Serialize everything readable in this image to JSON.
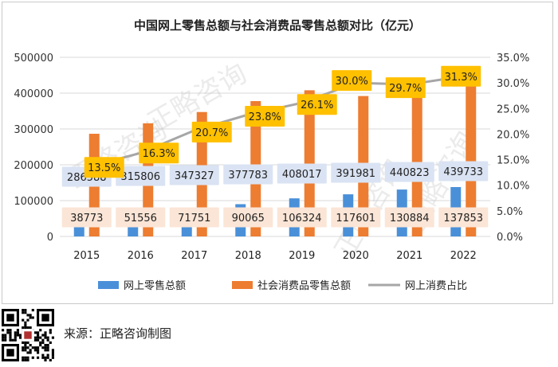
{
  "chart_data": {
    "type": "bar",
    "title": "中国网上零售总额与社会消费品零售总额对比（亿元）",
    "categories": [
      "2015",
      "2016",
      "2017",
      "2018",
      "2019",
      "2020",
      "2021",
      "2022"
    ],
    "y_left_ticks": [
      "0",
      "100000",
      "200000",
      "300000",
      "400000",
      "500000"
    ],
    "y_right_ticks": [
      "0.0%",
      "5.0%",
      "10.0%",
      "15.0%",
      "20.0%",
      "25.0%",
      "30.0%",
      "35.0%"
    ],
    "ylim_left": [
      0,
      500000
    ],
    "ylim_right": [
      0,
      35
    ],
    "grid": true,
    "legend_position": "bottom",
    "series": [
      {
        "name": "网上零售总额",
        "kind": "bar",
        "axis": "left",
        "color": "#4a90d9",
        "values": [
          38773,
          51556,
          71751,
          90065,
          106324,
          117601,
          130884,
          137853
        ],
        "labels": [
          "38773",
          "51556",
          "71751",
          "90065",
          "106324",
          "117601",
          "130884",
          "137853"
        ]
      },
      {
        "name": "社会消费品零售总额",
        "kind": "bar",
        "axis": "left",
        "color": "#ed7d31",
        "values": [
          286588,
          315806,
          347327,
          377783,
          408017,
          391981,
          440823,
          439733
        ],
        "labels": [
          "286588",
          "315806",
          "347327",
          "377783",
          "408017",
          "391981",
          "440823",
          "439733"
        ]
      },
      {
        "name": "网上消费占比",
        "kind": "line",
        "axis": "right",
        "color": "#a6a6a6",
        "values": [
          13.5,
          16.3,
          20.7,
          23.8,
          26.1,
          30.0,
          29.7,
          31.3
        ],
        "labels": [
          "13.5%",
          "16.3%",
          "20.7%",
          "23.8%",
          "26.1%",
          "30.0%",
          "29.7%",
          "31.3%"
        ]
      }
    ]
  },
  "watermark": "正略咨询",
  "footer": {
    "source": "来源：正略咨询制图"
  }
}
